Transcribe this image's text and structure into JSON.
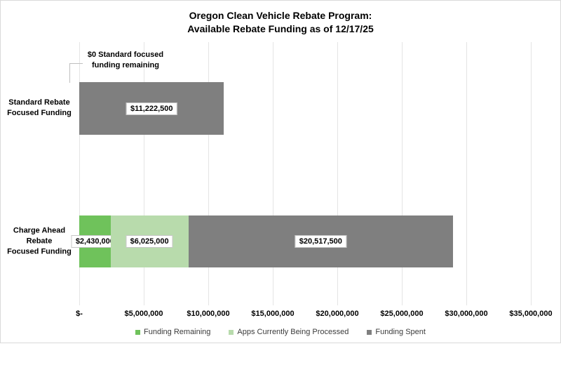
{
  "title": {
    "line1": "Oregon Clean Vehicle Rebate Program:",
    "line2": "Available Rebate Funding as of 12/17/25"
  },
  "annotation": {
    "line1": "$0 Standard focused",
    "line2": "funding remaining"
  },
  "x_axis": {
    "tick_labels": [
      "$-",
      "$5,000,000",
      "$10,000,000",
      "$15,000,000",
      "$20,000,000",
      "$25,000,000",
      "$30,000,000",
      "$35,000,000"
    ]
  },
  "legend": {
    "items": [
      {
        "label": "Funding Remaining",
        "color": "#6FC25B"
      },
      {
        "label": "Apps Currently Being Processed",
        "color": "#B8DBAC"
      },
      {
        "label": "Funding Spent",
        "color": "#7F7F7F"
      }
    ]
  },
  "colors": {
    "funding_remaining": "#6FC25B",
    "apps_processing": "#B8DBAC",
    "funding_spent": "#7F7F7F",
    "gridline": "#e4e4e4",
    "frame_border": "#d9d9d9",
    "label_box_border": "#c6c6c6",
    "leader_line": "#bfbfbf"
  },
  "chart_data": {
    "type": "bar",
    "orientation": "horizontal",
    "stacked": true,
    "title": "Oregon Clean Vehicle Rebate Program: Available Rebate Funding as of 12/17/25",
    "categories": [
      "Standard Rebate Focused Funding",
      "Charge Ahead Rebate Focused Funding"
    ],
    "category_label_lines": [
      [
        "Standard Rebate",
        "Focused Funding"
      ],
      [
        "Charge Ahead",
        "Rebate",
        "Focused Funding"
      ]
    ],
    "series": [
      {
        "name": "Funding Remaining",
        "color": "#6FC25B",
        "values": [
          0,
          2430000
        ],
        "data_labels": [
          "",
          "$2,430,000"
        ]
      },
      {
        "name": "Apps Currently Being Processed",
        "color": "#B8DBAC",
        "values": [
          0,
          6025000
        ],
        "data_labels": [
          "",
          "$6,025,000"
        ]
      },
      {
        "name": "Funding Spent",
        "color": "#7F7F7F",
        "values": [
          11222500,
          20517500
        ],
        "data_labels": [
          "$11,222,500",
          "$20,517,500"
        ]
      }
    ],
    "totals": [
      11222500,
      28972500
    ],
    "xlim": [
      0,
      35000000
    ],
    "x_tick_interval": 5000000,
    "grid": "vertical",
    "legend_position": "bottom",
    "annotation": "$0 Standard focused funding remaining"
  }
}
